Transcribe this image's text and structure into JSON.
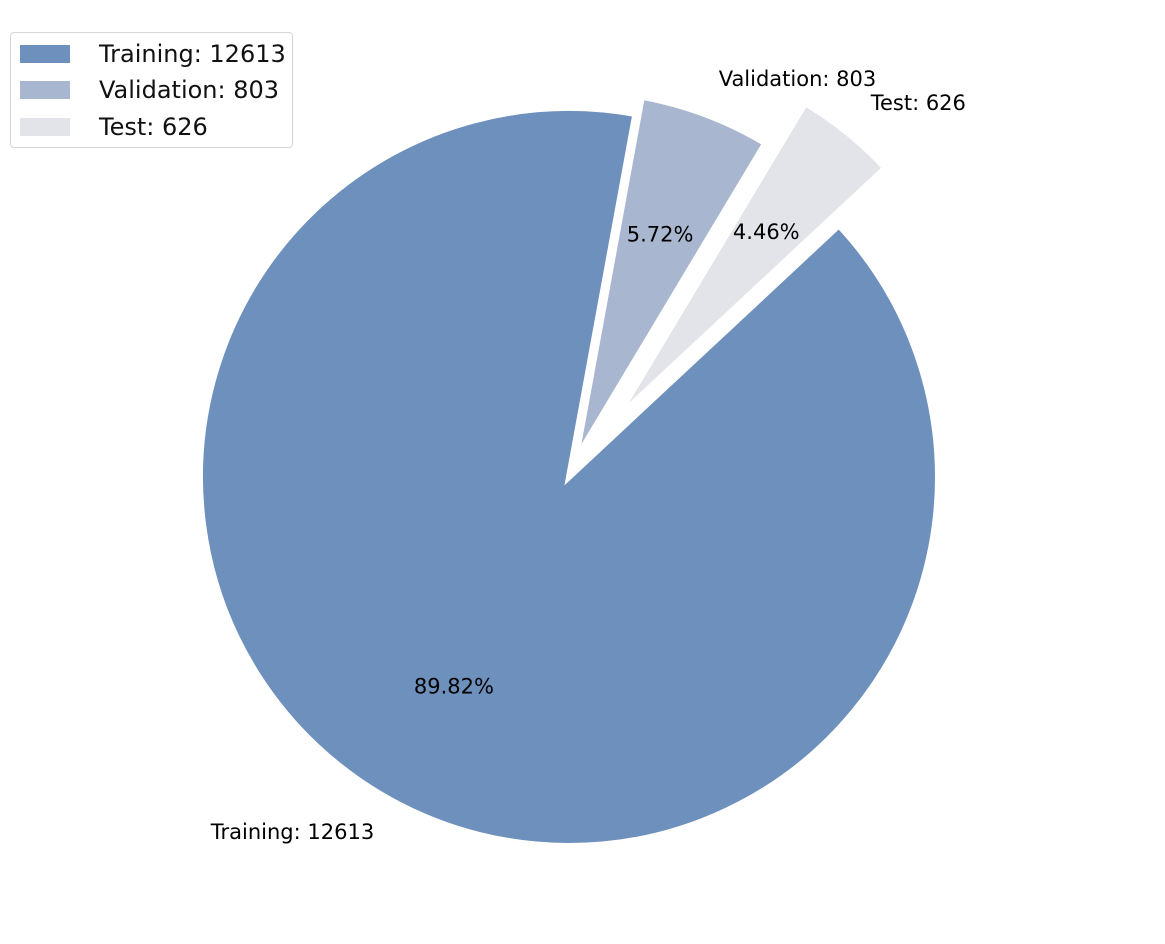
{
  "chart_data": {
    "type": "pie",
    "title": "",
    "slices": [
      {
        "label": "Training: 12613",
        "value": 12613,
        "pct_label": "89.82%",
        "color": "#6e90bd",
        "explode": 0.0
      },
      {
        "label": "Validation: 803",
        "value": 803,
        "pct_label": "5.72%",
        "color": "#a8b7cf",
        "explode": 0.05
      },
      {
        "label": "Test: 626",
        "value": 626,
        "pct_label": "4.46%",
        "color": "#e3e4ea",
        "explode": 0.2
      }
    ],
    "start_angle_deg": 43,
    "direction": "clockwise",
    "legend": {
      "position": "top-left",
      "entries": [
        "Training: 12613",
        "Validation: 803",
        "Test: 626"
      ]
    }
  }
}
